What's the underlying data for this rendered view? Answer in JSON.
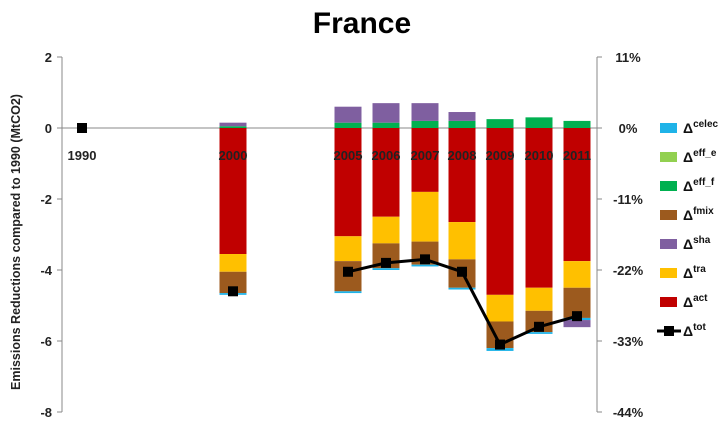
{
  "chart_data": {
    "type": "bar",
    "title": "France",
    "ylabel": "Emissions Reductions compared to 1990 (MtCO2)",
    "ylim": [
      -8,
      2
    ],
    "yticks": [
      "2",
      "0",
      "-2",
      "-4",
      "-6",
      "-8"
    ],
    "y2ticks": [
      "11%",
      "0%",
      "-11%",
      "-22%",
      "-33%",
      "-44%"
    ],
    "categories": [
      "1990",
      "2000",
      "2005",
      "2006",
      "2007",
      "2008",
      "2009",
      "2010",
      "2011"
    ],
    "stacked": true,
    "series": [
      {
        "name": "celec",
        "color": "#1fb3e8",
        "values": [
          0,
          -0.05,
          -0.05,
          -0.05,
          -0.05,
          -0.05,
          -0.08,
          -0.05,
          -0.06
        ]
      },
      {
        "name": "eff_e",
        "color": "#92d050",
        "values": [
          0,
          0,
          0,
          0,
          0,
          0,
          0,
          0,
          0
        ]
      },
      {
        "name": "eff_f",
        "color": "#00b050",
        "values": [
          0,
          0.05,
          0.15,
          0.15,
          0.2,
          0.2,
          0.25,
          0.3,
          0.2
        ]
      },
      {
        "name": "fmix",
        "color": "#9c5a1e",
        "values": [
          0,
          -0.6,
          -0.85,
          -0.7,
          -0.65,
          -0.8,
          -0.75,
          -0.6,
          -0.85
        ]
      },
      {
        "name": "sha",
        "color": "#7f5fa0",
        "values": [
          0,
          0.1,
          0.45,
          0.55,
          0.5,
          0.25,
          0,
          0,
          -0.2
        ]
      },
      {
        "name": "tra",
        "color": "#ffc000",
        "values": [
          0,
          -0.5,
          -0.7,
          -0.75,
          -1.4,
          -1.05,
          -0.75,
          -0.65,
          -0.75
        ]
      },
      {
        "name": "act",
        "color": "#c00000",
        "values": [
          0,
          -3.55,
          -3.05,
          -2.5,
          -1.8,
          -2.65,
          -4.7,
          -4.5,
          -3.75
        ]
      }
    ],
    "line": {
      "name": "tot",
      "color": "#000000",
      "values": [
        0,
        -4.6,
        -4.05,
        -3.8,
        -3.7,
        -4.05,
        -6.1,
        -5.6,
        -5.3
      ],
      "connect_from_index": 2
    },
    "legend": {
      "placement": "right",
      "entries": [
        {
          "name": "celec",
          "color": "#1fb3e8",
          "marker": "box"
        },
        {
          "name": "eff_e",
          "color": "#92d050",
          "marker": "box"
        },
        {
          "name": "eff_f",
          "color": "#00b050",
          "marker": "box"
        },
        {
          "name": "fmix",
          "color": "#9c5a1e",
          "marker": "box"
        },
        {
          "name": "sha",
          "color": "#7f5fa0",
          "marker": "box"
        },
        {
          "name": "tra",
          "color": "#ffc000",
          "marker": "box"
        },
        {
          "name": "act",
          "color": "#c00000",
          "marker": "box"
        },
        {
          "name": "tot",
          "color": "#000000",
          "marker": "line"
        }
      ]
    },
    "grid": false
  }
}
